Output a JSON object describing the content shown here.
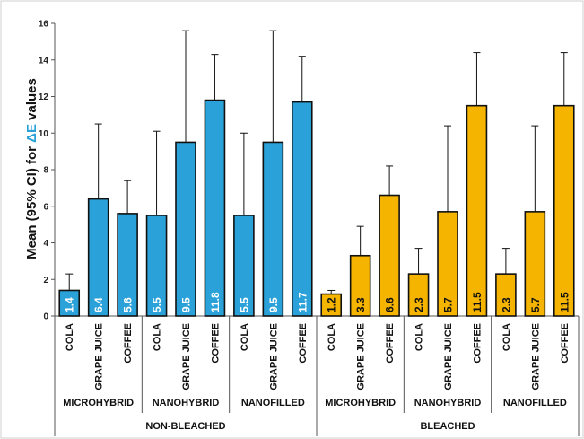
{
  "chart_data": {
    "type": "bar",
    "ylabel_prefix": "Mean (95% CI) for ",
    "ylabel_delta": "ΔE",
    "ylabel_suffix": " values",
    "ylim": [
      0,
      16
    ],
    "yticks": [
      "0",
      "2",
      "4",
      "6",
      "8",
      "10",
      "12",
      "14",
      "16"
    ],
    "grid": false,
    "colors": {
      "non_bleached": "#2aa1d8",
      "bleached": "#f5b400",
      "delta_accent": "#2aa1d8"
    },
    "bars": [
      {
        "treatment": "NON-BLEACHED",
        "material": "MICROHYBRID",
        "category": "COLA",
        "value": 1.4,
        "label": "1.4",
        "ci_upper": 2.3
      },
      {
        "treatment": "NON-BLEACHED",
        "material": "MICROHYBRID",
        "category": "GRAPE JUICE",
        "value": 6.4,
        "label": "6.4",
        "ci_upper": 10.5
      },
      {
        "treatment": "NON-BLEACHED",
        "material": "MICROHYBRID",
        "category": "COFFEE",
        "value": 5.6,
        "label": "5.6",
        "ci_upper": 7.4
      },
      {
        "treatment": "NON-BLEACHED",
        "material": "NANOHYBRID",
        "category": "COLA",
        "value": 5.5,
        "label": "5.5",
        "ci_upper": 10.1
      },
      {
        "treatment": "NON-BLEACHED",
        "material": "NANOHYBRID",
        "category": "GRAPE JUICE",
        "value": 9.5,
        "label": "9.5",
        "ci_upper": 15.6
      },
      {
        "treatment": "NON-BLEACHED",
        "material": "NANOHYBRID",
        "category": "COFFEE",
        "value": 11.8,
        "label": "11.8",
        "ci_upper": 14.3
      },
      {
        "treatment": "NON-BLEACHED",
        "material": "NANOFILLED",
        "category": "COLA",
        "value": 5.5,
        "label": "5.5",
        "ci_upper": 10.0
      },
      {
        "treatment": "NON-BLEACHED",
        "material": "NANOFILLED",
        "category": "GRAPE JUICE",
        "value": 9.5,
        "label": "9.5",
        "ci_upper": 15.6
      },
      {
        "treatment": "NON-BLEACHED",
        "material": "NANOFILLED",
        "category": "COFFEE",
        "value": 11.7,
        "label": "11.7",
        "ci_upper": 14.2
      },
      {
        "treatment": "BLEACHED",
        "material": "MICROHYBRID",
        "category": "COLA",
        "value": 1.2,
        "label": "1.2",
        "ci_upper": 1.4
      },
      {
        "treatment": "BLEACHED",
        "material": "MICROHYBRID",
        "category": "GRAPE JUICE",
        "value": 3.3,
        "label": "3.3",
        "ci_upper": 4.9
      },
      {
        "treatment": "BLEACHED",
        "material": "MICROHYBRID",
        "category": "COFFEE",
        "value": 6.6,
        "label": "6.6",
        "ci_upper": 8.2
      },
      {
        "treatment": "BLEACHED",
        "material": "NANOHYBRID",
        "category": "COLA",
        "value": 2.3,
        "label": "2.3",
        "ci_upper": 3.7
      },
      {
        "treatment": "BLEACHED",
        "material": "NANOHYBRID",
        "category": "GRAPE JUICE",
        "value": 5.7,
        "label": "5.7",
        "ci_upper": 10.4
      },
      {
        "treatment": "BLEACHED",
        "material": "NANOHYBRID",
        "category": "COFFEE",
        "value": 11.5,
        "label": "11.5",
        "ci_upper": 14.4
      },
      {
        "treatment": "BLEACHED",
        "material": "NANOFILLED",
        "category": "COLA",
        "value": 2.3,
        "label": "2.3",
        "ci_upper": 3.7
      },
      {
        "treatment": "BLEACHED",
        "material": "NANOFILLED",
        "category": "GRAPE JUICE",
        "value": 5.7,
        "label": "5.7",
        "ci_upper": 10.4
      },
      {
        "treatment": "BLEACHED",
        "material": "NANOFILLED",
        "category": "COFFEE",
        "value": 11.5,
        "label": "11.5",
        "ci_upper": 14.4
      }
    ],
    "material_groups": [
      "MICROHYBRID",
      "NANOHYBRID",
      "NANOFILLED",
      "MICROHYBRID",
      "NANOHYBRID",
      "NANOFILLED"
    ],
    "treatment_groups": [
      "NON-BLEACHED",
      "BLEACHED"
    ]
  }
}
